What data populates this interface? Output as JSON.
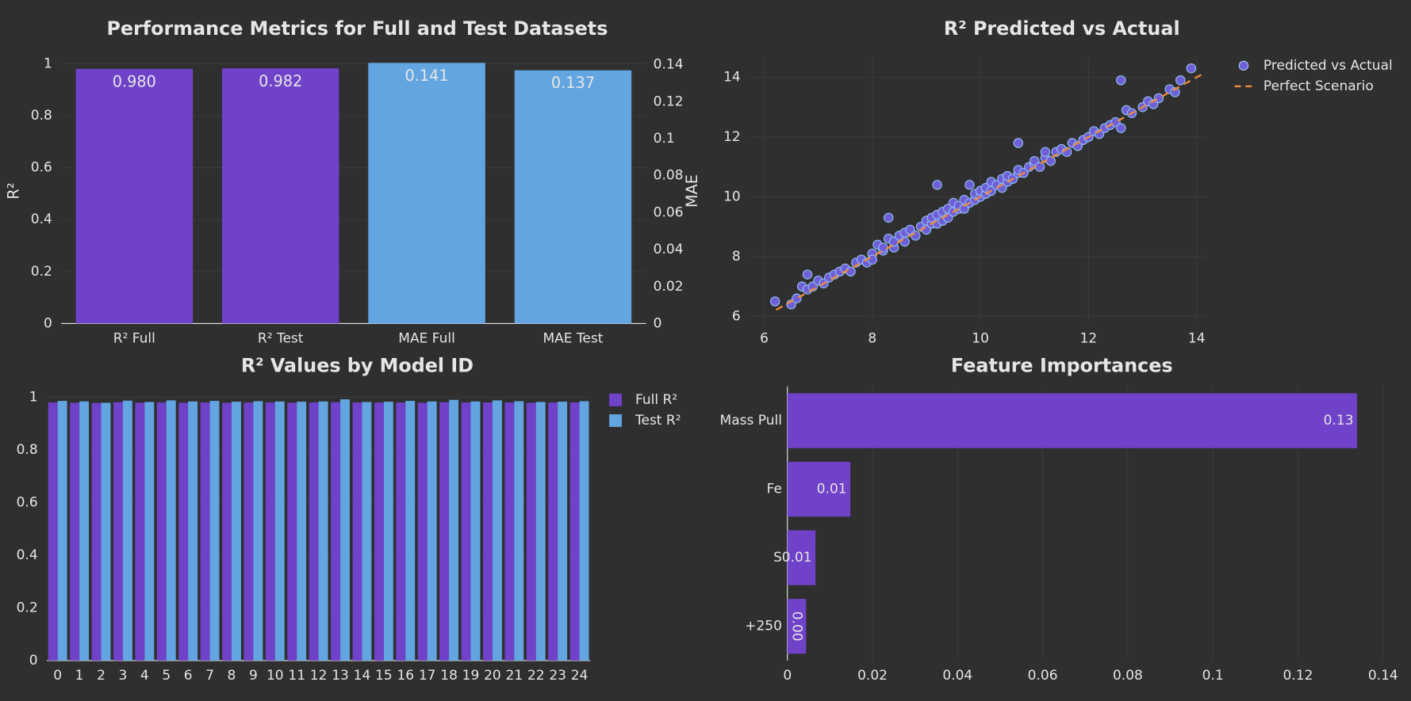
{
  "chart_data": [
    {
      "type": "bar",
      "title": "Performance Metrics for Full and Test Datasets",
      "categories": [
        "R² Full",
        "R² Test",
        "MAE Full",
        "MAE Test"
      ],
      "series": [
        {
          "color": "#6f42c9",
          "values": [
            0.98,
            0.982,
            null,
            null
          ],
          "value_labels": [
            "0.980",
            "0.982",
            null,
            null
          ]
        },
        {
          "color": "#63a5e0",
          "axis": "y2",
          "values": [
            null,
            null,
            0.141,
            0.137
          ],
          "value_labels": [
            null,
            null,
            "0.141",
            "0.137"
          ]
        }
      ],
      "y_title": "R²",
      "y2_title": "MAE",
      "ylim": [
        0,
        1.02
      ],
      "yticks": [
        0,
        0.2,
        0.4,
        0.6,
        0.8,
        1
      ],
      "y2lim": [
        0,
        0.1434
      ],
      "y2ticks": [
        0,
        0.02,
        0.04,
        0.06,
        0.08,
        0.1,
        0.12,
        0.14
      ],
      "grid": true
    },
    {
      "type": "scatter",
      "title": "R² Predicted vs Actual",
      "legend": "right",
      "series": [
        {
          "name": "Predicted vs Actual",
          "color": "#6f5fd6",
          "mode": "markers",
          "x": [
            6.2,
            6.5,
            6.6,
            6.7,
            6.8,
            6.9,
            7.0,
            7.1,
            7.2,
            7.3,
            7.4,
            7.5,
            7.6,
            7.7,
            7.8,
            7.9,
            8.0,
            8.0,
            8.1,
            8.2,
            8.2,
            8.3,
            8.4,
            8.4,
            8.5,
            8.6,
            8.6,
            8.7,
            8.8,
            8.9,
            9.0,
            9.0,
            9.1,
            9.1,
            9.2,
            9.2,
            9.3,
            9.3,
            9.4,
            9.4,
            9.5,
            9.5,
            9.6,
            9.6,
            9.7,
            9.7,
            9.8,
            9.8,
            9.9,
            9.9,
            10.0,
            10.0,
            10.1,
            10.1,
            10.2,
            10.2,
            10.3,
            10.4,
            10.4,
            10.5,
            10.5,
            10.6,
            10.7,
            10.7,
            10.8,
            10.9,
            11.0,
            11.0,
            11.1,
            11.2,
            11.2,
            11.3,
            11.4,
            11.5,
            11.6,
            11.7,
            11.8,
            11.9,
            12.0,
            12.1,
            12.2,
            12.3,
            12.4,
            12.5,
            12.6,
            12.7,
            12.8,
            13.0,
            13.1,
            13.2,
            13.3,
            13.5,
            13.6,
            13.7,
            13.9,
            6.8,
            8.3,
            9.2,
            10.7,
            12.6
          ],
          "values": [
            6.5,
            6.4,
            6.6,
            7.0,
            6.9,
            7.0,
            7.2,
            7.1,
            7.3,
            7.4,
            7.5,
            7.6,
            7.5,
            7.8,
            7.9,
            7.8,
            8.1,
            7.9,
            8.4,
            8.2,
            8.3,
            8.6,
            8.3,
            8.5,
            8.7,
            8.5,
            8.8,
            8.9,
            8.7,
            9.0,
            9.2,
            8.9,
            9.1,
            9.3,
            9.1,
            9.4,
            9.2,
            9.5,
            9.6,
            9.3,
            9.5,
            9.8,
            9.6,
            9.7,
            9.9,
            9.6,
            10.4,
            9.8,
            9.9,
            10.1,
            10.0,
            10.2,
            10.1,
            10.3,
            10.5,
            10.2,
            10.4,
            10.3,
            10.6,
            10.5,
            10.7,
            10.6,
            10.8,
            10.9,
            10.8,
            11.0,
            11.1,
            11.2,
            11.0,
            11.3,
            11.5,
            11.2,
            11.5,
            11.6,
            11.5,
            11.8,
            11.7,
            11.9,
            12.0,
            12.2,
            12.1,
            12.3,
            12.4,
            12.5,
            12.3,
            12.9,
            12.8,
            13.0,
            13.2,
            13.1,
            13.3,
            13.6,
            13.5,
            13.9,
            14.3,
            7.4,
            9.3,
            10.4,
            11.8,
            13.9
          ]
        },
        {
          "name": "Perfect Scenario",
          "color": "#f28c38",
          "mode": "dash",
          "x": [
            6.22,
            14.17
          ],
          "values": [
            6.22,
            14.17
          ]
        }
      ],
      "xlim": [
        5.73,
        14.17
      ],
      "xticks": [
        6,
        8,
        10,
        12,
        14
      ],
      "ylim": [
        5.76,
        14.63
      ],
      "yticks": [
        6,
        8,
        10,
        12,
        14
      ],
      "grid": true
    },
    {
      "type": "bar",
      "title": "R² Values by Model ID",
      "legend": "right",
      "categories": [
        "0",
        "1",
        "2",
        "3",
        "4",
        "5",
        "6",
        "7",
        "8",
        "9",
        "10",
        "11",
        "12",
        "13",
        "14",
        "15",
        "16",
        "17",
        "18",
        "19",
        "20",
        "21",
        "22",
        "23",
        "24"
      ],
      "series": [
        {
          "name": "Full R²",
          "color": "#6f42c9",
          "values": [
            0.98,
            0.979,
            0.978,
            0.981,
            0.979,
            0.98,
            0.979,
            0.98,
            0.979,
            0.98,
            0.98,
            0.979,
            0.98,
            0.981,
            0.98,
            0.98,
            0.98,
            0.979,
            0.981,
            0.98,
            0.98,
            0.98,
            0.979,
            0.98,
            0.98
          ]
        },
        {
          "name": "Test R²",
          "color": "#63a5e0",
          "values": [
            0.986,
            0.984,
            0.979,
            0.987,
            0.982,
            0.988,
            0.984,
            0.986,
            0.983,
            0.985,
            0.984,
            0.983,
            0.984,
            0.992,
            0.982,
            0.983,
            0.986,
            0.984,
            0.99,
            0.984,
            0.988,
            0.985,
            0.982,
            0.983,
            0.985
          ]
        }
      ],
      "ylim": [
        0,
        1.017
      ],
      "yticks": [
        0,
        0.2,
        0.4,
        0.6,
        0.8,
        1
      ],
      "grid": true
    },
    {
      "type": "bar",
      "orientation": "h",
      "title": "Feature Importances",
      "categories": [
        "Mass Pull",
        "Fe",
        "S",
        "+250"
      ],
      "series": [
        {
          "color": "#6f42c9",
          "values": [
            0.1339,
            0.0148,
            0.0066,
            0.0044
          ],
          "value_labels": [
            "0.13",
            "0.01",
            "0.01",
            "0.00"
          ]
        }
      ],
      "xlim": [
        0,
        0.1417
      ],
      "xticks": [
        0,
        0.02,
        0.04,
        0.06,
        0.08,
        0.1,
        0.12,
        0.14
      ],
      "grid": true
    }
  ]
}
